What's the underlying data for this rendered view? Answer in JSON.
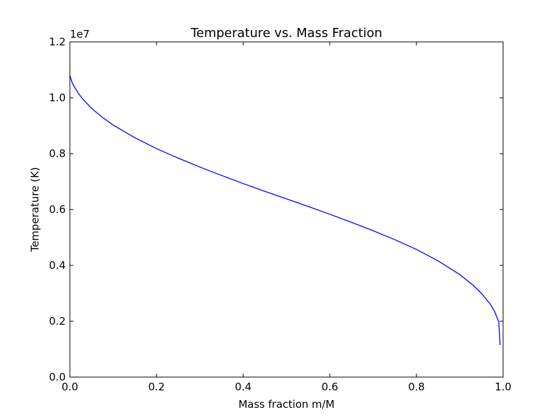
{
  "chart_data": {
    "type": "line",
    "title": "Temperature vs. Mass Fraction",
    "xlabel": "Mass fraction m/M",
    "ylabel": "Temperature (K)",
    "y_offset_label": "1e7",
    "xlim": [
      0.0,
      1.0
    ],
    "ylim": [
      0.0,
      1.2
    ],
    "y_scale_factor": 10000000,
    "x_ticks": [
      "0.0",
      "0.2",
      "0.4",
      "0.6",
      "0.8",
      "1.0"
    ],
    "y_ticks": [
      "0.0",
      "0.2",
      "0.4",
      "0.6",
      "0.8",
      "1.0",
      "1.2"
    ],
    "grid": false,
    "line_color": "#0000ff",
    "series": [
      {
        "x": [
          0.0,
          0.005,
          0.01,
          0.02,
          0.03,
          0.05,
          0.075,
          0.1,
          0.15,
          0.2,
          0.25,
          0.3,
          0.35,
          0.4,
          0.45,
          0.5,
          0.55,
          0.6,
          0.65,
          0.7,
          0.75,
          0.8,
          0.85,
          0.9,
          0.93,
          0.95,
          0.97,
          0.98,
          0.99,
          0.993
        ],
        "y": [
          1.08,
          1.055,
          1.04,
          1.015,
          0.995,
          0.962,
          0.93,
          0.902,
          0.857,
          0.818,
          0.784,
          0.752,
          0.722,
          0.693,
          0.665,
          0.638,
          0.611,
          0.583,
          0.554,
          0.524,
          0.492,
          0.457,
          0.416,
          0.367,
          0.33,
          0.3,
          0.262,
          0.236,
          0.198,
          0.115
        ]
      }
    ]
  }
}
